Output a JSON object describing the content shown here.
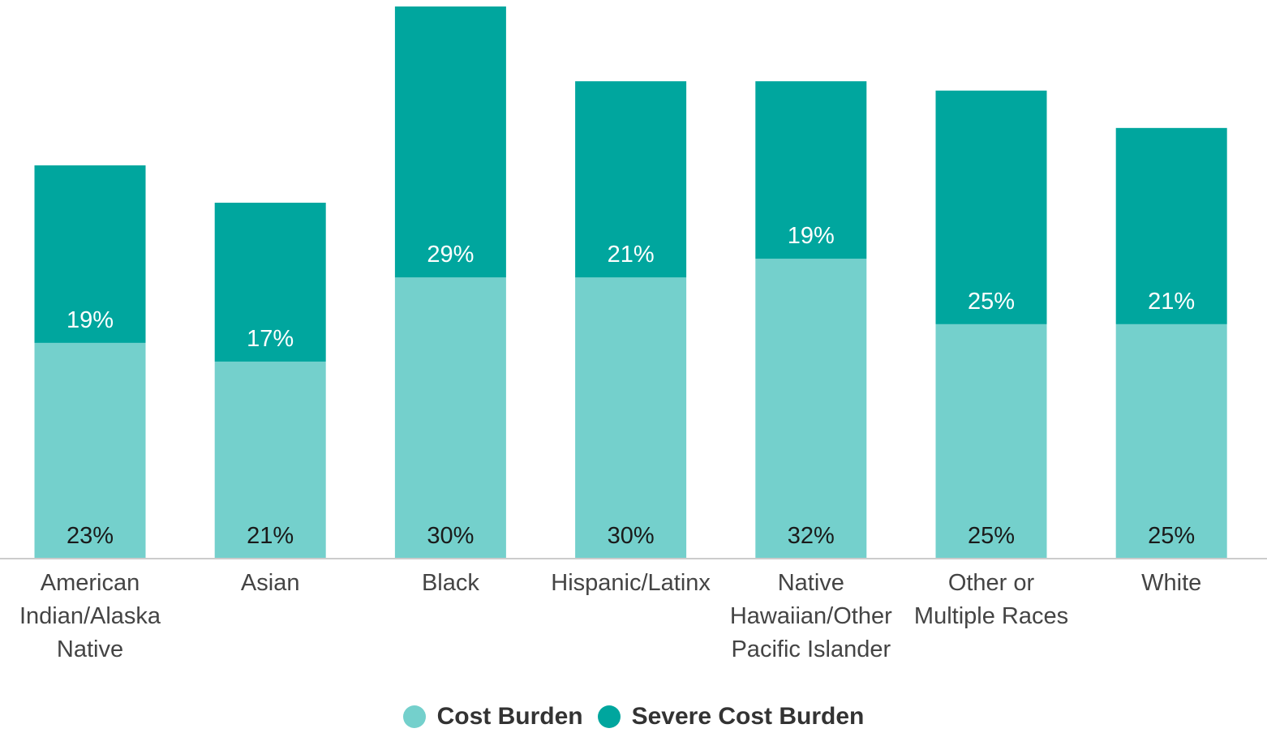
{
  "chart_data": {
    "type": "bar",
    "stacked": true,
    "categories": [
      [
        "American",
        "Indian/Alaska",
        "Native"
      ],
      [
        "Asian"
      ],
      [
        "Black"
      ],
      [
        "Hispanic/Latinx"
      ],
      [
        "Native",
        "Hawaiian/Other",
        "Pacific Islander"
      ],
      [
        "Other or",
        "Multiple Races"
      ],
      [
        "White"
      ]
    ],
    "series": [
      {
        "name": "Cost Burden",
        "color": "#74d0cc",
        "label_color": "#1a1a1a",
        "values": [
          23,
          21,
          30,
          30,
          32,
          25,
          25
        ],
        "labels": [
          "23%",
          "21%",
          "30%",
          "30%",
          "32%",
          "25%",
          "25%"
        ]
      },
      {
        "name": "Severe Cost Burden",
        "color": "#00a69e",
        "label_color": "#ffffff",
        "values": [
          19,
          17,
          29,
          21,
          19,
          25,
          21
        ],
        "labels": [
          "19%",
          "17%",
          "29%",
          "21%",
          "19%",
          "25%",
          "21%"
        ]
      }
    ],
    "ylim": [
      0,
      59
    ],
    "grid": false,
    "legend": "bottom"
  }
}
